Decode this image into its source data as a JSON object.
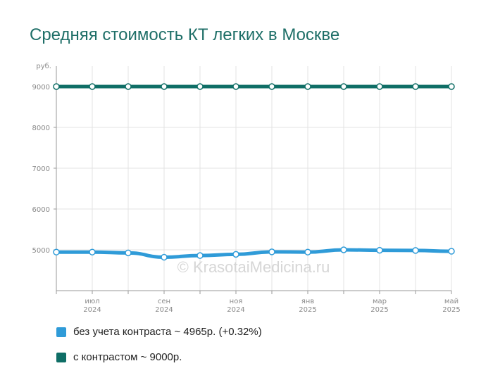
{
  "chart_data": {
    "type": "line",
    "title": "Средняя стоимость КТ легких в Москве",
    "ylabel": "руб.",
    "ylim": [
      4000,
      9500
    ],
    "yticks": [
      5000,
      6000,
      7000,
      8000,
      9000
    ],
    "x_tick_labels": [
      {
        "month": "июл",
        "year": "2024"
      },
      {
        "month": "сен",
        "year": "2024"
      },
      {
        "month": "ноя",
        "year": "2024"
      },
      {
        "month": "янв",
        "year": "2025"
      },
      {
        "month": "мар",
        "year": "2025"
      },
      {
        "month": "май",
        "year": "2025"
      }
    ],
    "categories": [
      "2024-06",
      "2024-07",
      "2024-08",
      "2024-09",
      "2024-10",
      "2024-11",
      "2024-12",
      "2025-01",
      "2025-02",
      "2025-03",
      "2025-04",
      "2025-05"
    ],
    "series": [
      {
        "name": "с контрастом",
        "color": "#0f6e66",
        "values": [
          9000,
          9000,
          9000,
          9000,
          9000,
          9000,
          9000,
          9000,
          9000,
          9000,
          9000,
          9000
        ]
      },
      {
        "name": "без учета контраста",
        "color": "#2f9bd8",
        "values": [
          4945,
          4945,
          4925,
          4820,
          4860,
          4890,
          4950,
          4945,
          5000,
          4990,
          4985,
          4965
        ]
      }
    ],
    "legend": [
      {
        "label": "без учета контраста ~ 4965р. (+0.32%)",
        "color": "#2f9bd8"
      },
      {
        "label": "с контрастом ~ 9000р.",
        "color": "#0f6e66"
      }
    ],
    "watermark": "© KrasotaiMedicina.ru",
    "grid": true
  }
}
